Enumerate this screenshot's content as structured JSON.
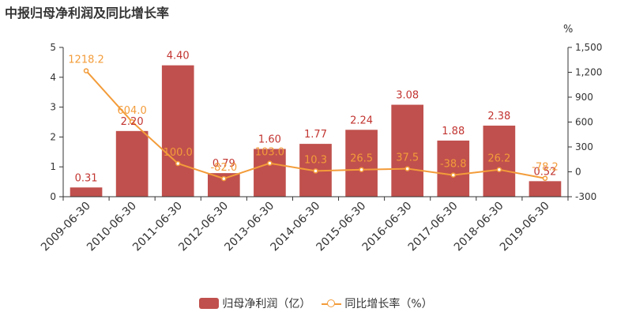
{
  "title": "中报归母净利润及同比增长率",
  "chart_data": {
    "type": "bar",
    "categories": [
      "2009-06-30",
      "2010-06-30",
      "2011-06-30",
      "2012-06-30",
      "2013-06-30",
      "2014-06-30",
      "2015-06-30",
      "2016-06-30",
      "2017-06-30",
      "2018-06-30",
      "2019-06-30"
    ],
    "series": [
      {
        "name": "归母净利润（亿）",
        "type": "bar",
        "color": "#c0504d",
        "values": [
          0.31,
          2.2,
          4.4,
          0.79,
          1.6,
          1.77,
          2.24,
          3.08,
          1.88,
          2.38,
          0.52
        ],
        "labels": [
          "0.31",
          "2.20",
          "4.40",
          "0.79",
          "1.60",
          "1.77",
          "2.24",
          "3.08",
          "1.88",
          "2.38",
          "0.52"
        ]
      },
      {
        "name": "同比增长率（%）",
        "type": "line",
        "color": "#f39c3a",
        "values": [
          1218.2,
          604.0,
          100.0,
          -82.0,
          103.0,
          10.3,
          26.5,
          37.5,
          -38.8,
          26.2,
          -78.2
        ],
        "labels": [
          "1218.2",
          "604.0",
          "100.0",
          "-82.0",
          "103.0",
          "10.3",
          "26.5",
          "37.5",
          "-38.8",
          "26.2",
          "-78.2"
        ]
      }
    ],
    "y_left": {
      "min": 0,
      "max": 5,
      "ticks": [
        "0",
        "1",
        "2",
        "3",
        "4",
        "5"
      ]
    },
    "y_right": {
      "min": -300,
      "max": 1500,
      "unit": "%",
      "ticks": [
        "-300",
        "0",
        "300",
        "600",
        "900",
        "1,200",
        "1,500"
      ]
    },
    "legend_position": "bottom-center"
  }
}
